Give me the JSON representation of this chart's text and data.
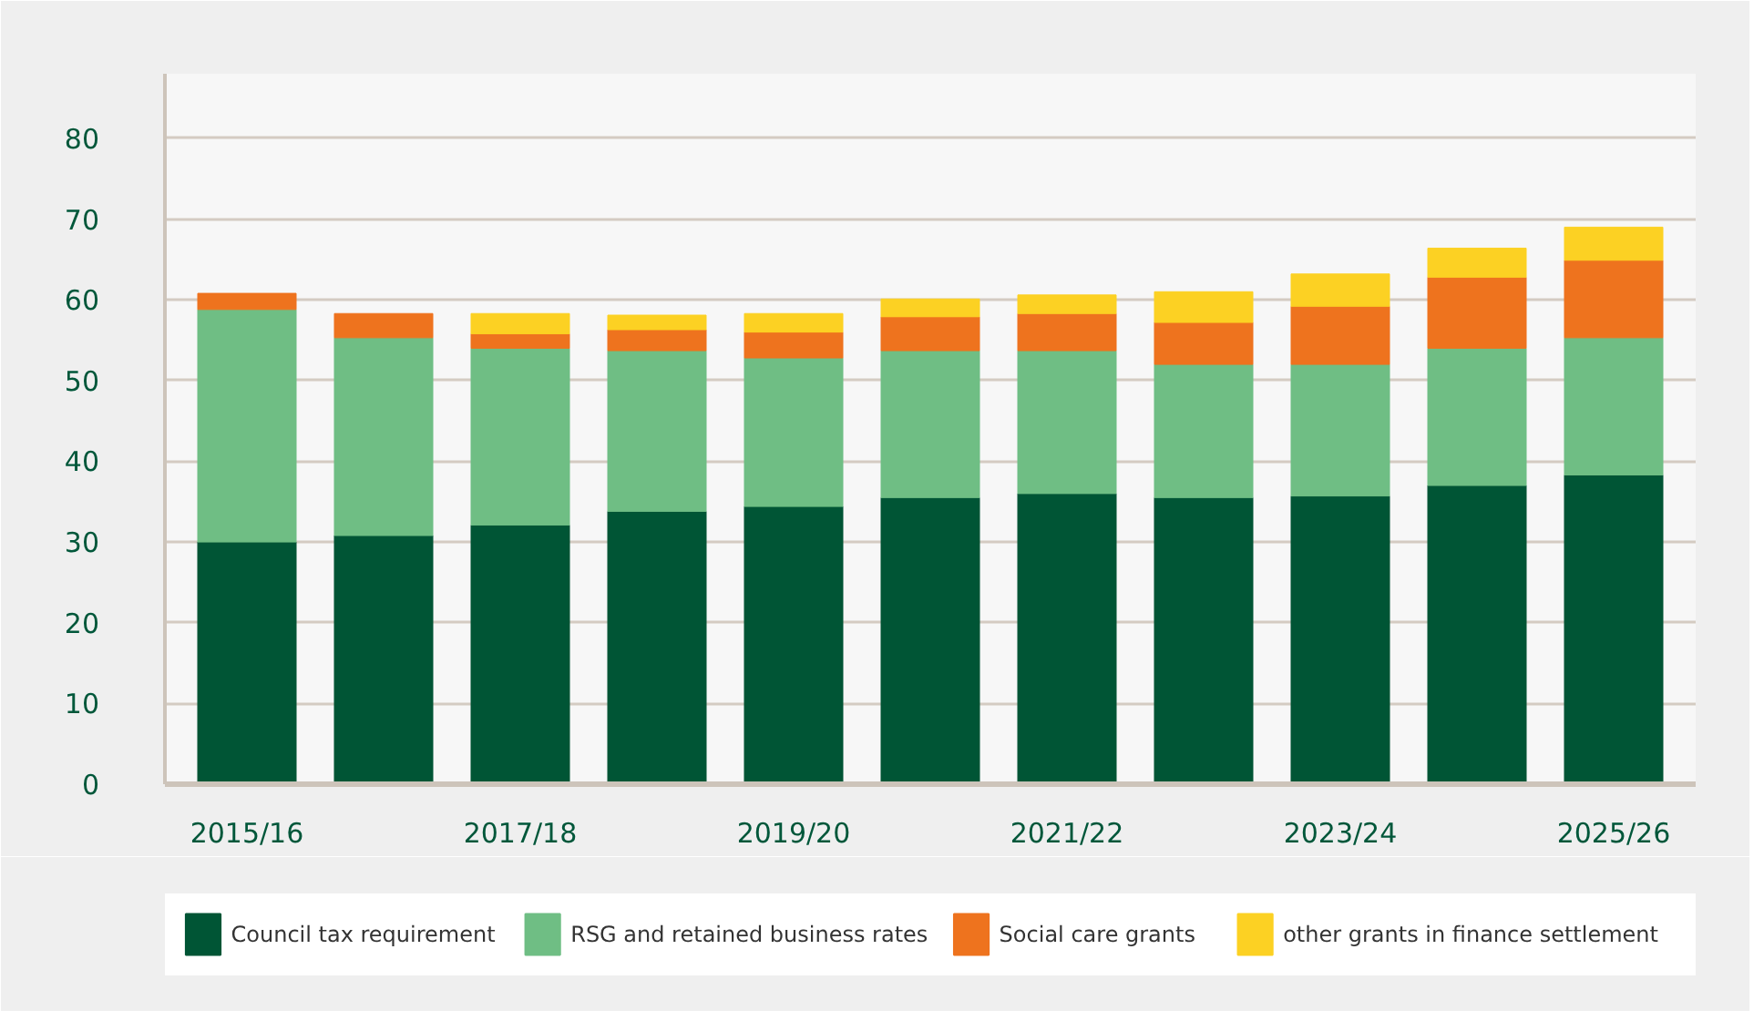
{
  "chart_data": {
    "type": "bar",
    "stacked": true,
    "categories": [
      "2015/16",
      null,
      "2017/18",
      null,
      "2019/20",
      null,
      "2021/22",
      null,
      "2023/24",
      null,
      "2025/26"
    ],
    "series": [
      {
        "name": "Council tax requirement",
        "color": "#005535",
        "values": [
          30.0,
          30.8,
          32.1,
          33.8,
          34.4,
          35.5,
          36.0,
          35.5,
          35.7,
          37.0,
          38.3
        ]
      },
      {
        "name": "RSG and retained business rates",
        "color": "#6fbe84",
        "values": [
          28.8,
          24.5,
          21.9,
          19.9,
          18.4,
          18.2,
          17.7,
          16.5,
          16.3,
          17.0,
          17.0
        ]
      },
      {
        "name": "Social care grants",
        "color": "#ee731e",
        "values": [
          2.0,
          3.0,
          1.8,
          2.6,
          3.2,
          4.2,
          4.6,
          5.2,
          7.2,
          8.8,
          9.6
        ]
      },
      {
        "name": "other grants in finance settlement",
        "color": "#fcd123",
        "values": [
          null,
          null,
          2.5,
          1.8,
          2.3,
          2.2,
          2.3,
          3.8,
          4.0,
          3.6,
          4.1
        ]
      }
    ],
    "ylim": [
      0,
      88
    ],
    "yticks": [
      0,
      10,
      20,
      30,
      40,
      50,
      60,
      70,
      80
    ],
    "grid": "y",
    "legend": "bottom"
  }
}
